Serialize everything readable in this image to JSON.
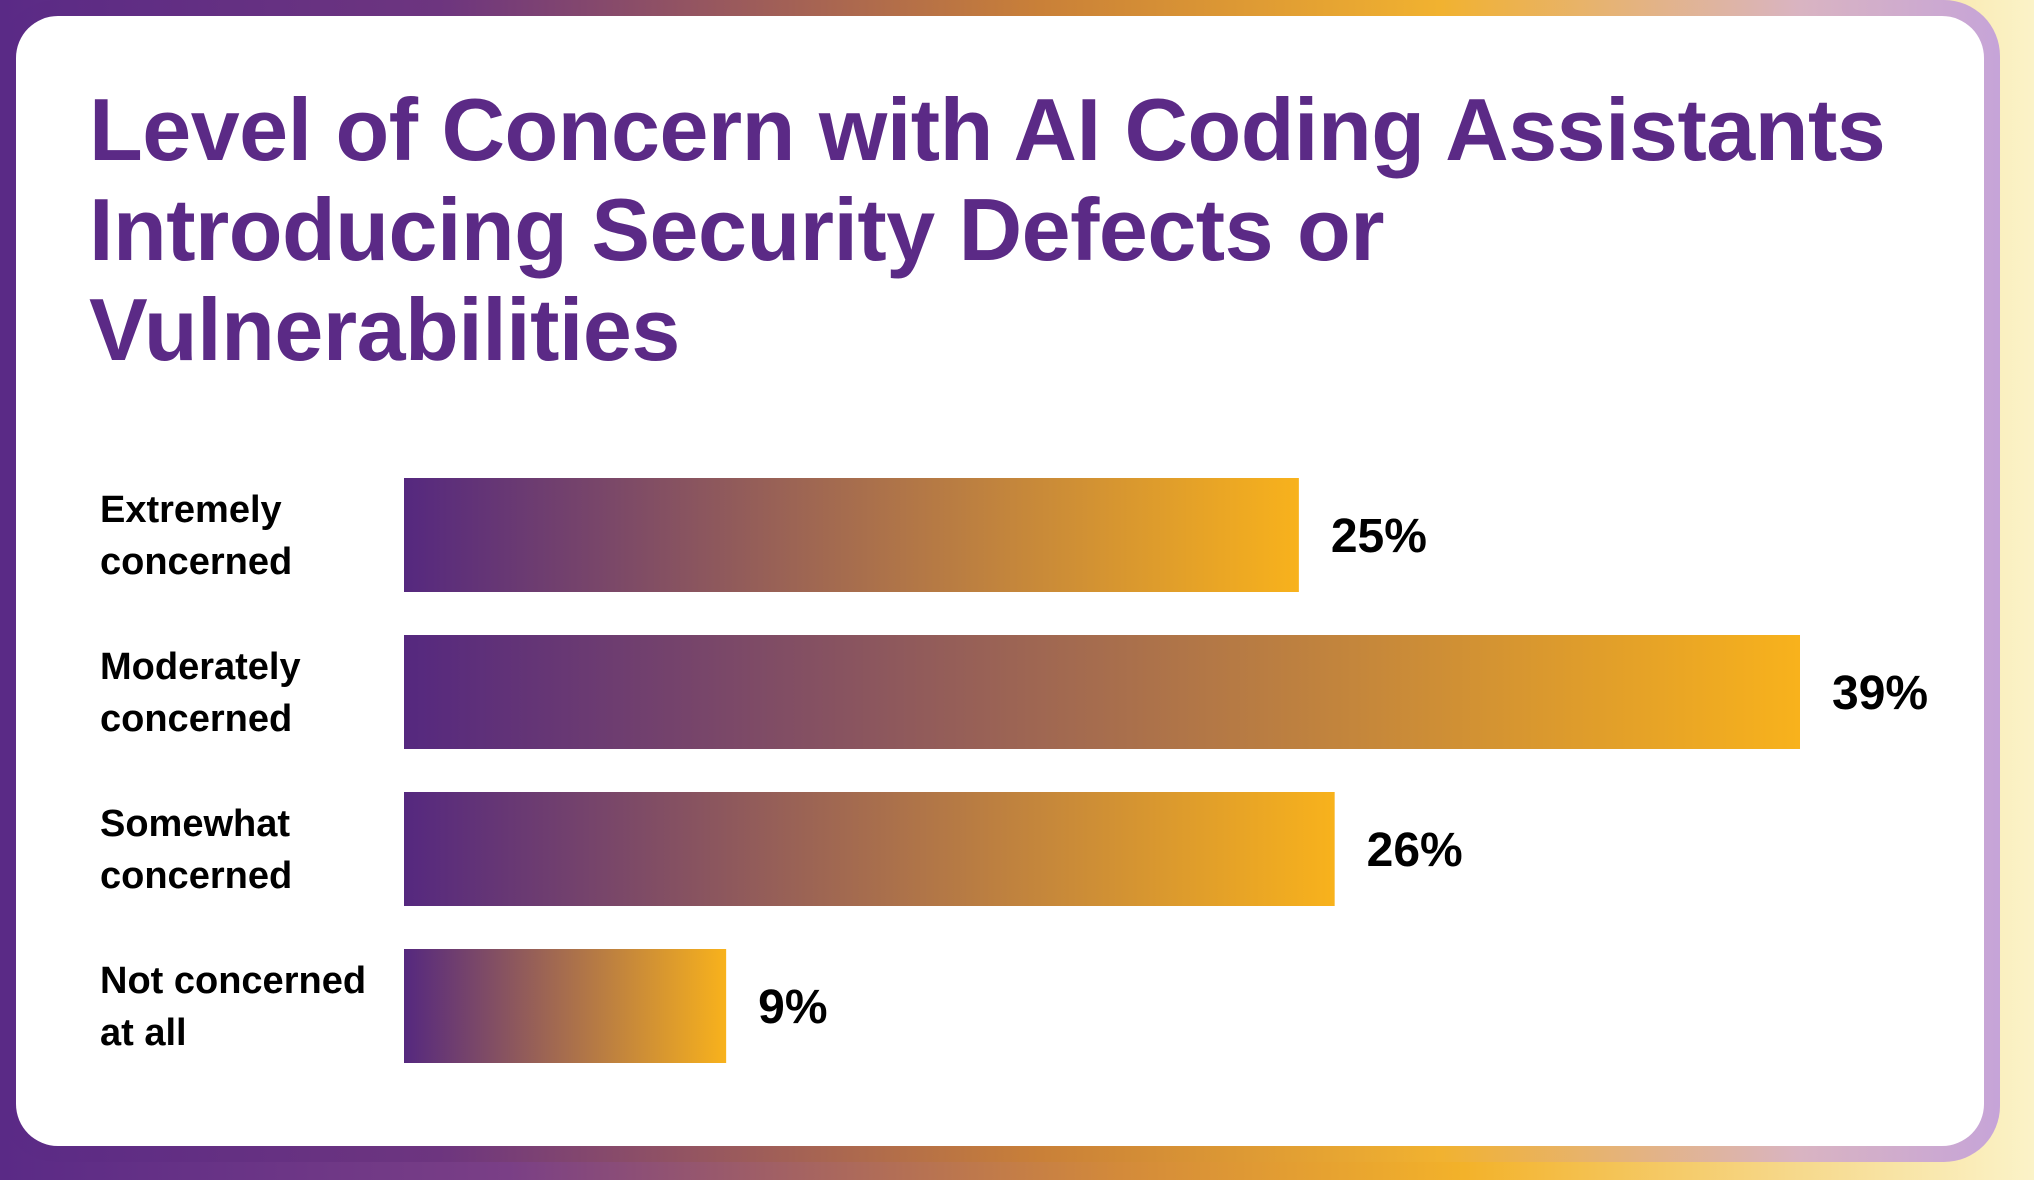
{
  "chart_data": {
    "type": "bar",
    "orientation": "horizontal",
    "title": "Level of Concern with AI Coding Assistants Introducing Security Defects or Vulnerabilities",
    "categories": [
      [
        "Extremely",
        "concerned"
      ],
      [
        "Moderately",
        "concerned"
      ],
      [
        "Somewhat",
        "concerned"
      ],
      [
        "Not concerned",
        "at all"
      ]
    ],
    "values": [
      25,
      39,
      26,
      9
    ],
    "value_labels": [
      "25%",
      "39%",
      "26%",
      "9%"
    ],
    "unit": "%",
    "xlim": [
      0,
      39
    ],
    "grid": false,
    "legend": "none",
    "colors": {
      "bar_gradient_start": "#55287f",
      "bar_gradient_end": "#f8b21c",
      "title": "#5b2a86",
      "text": "#000000"
    }
  }
}
